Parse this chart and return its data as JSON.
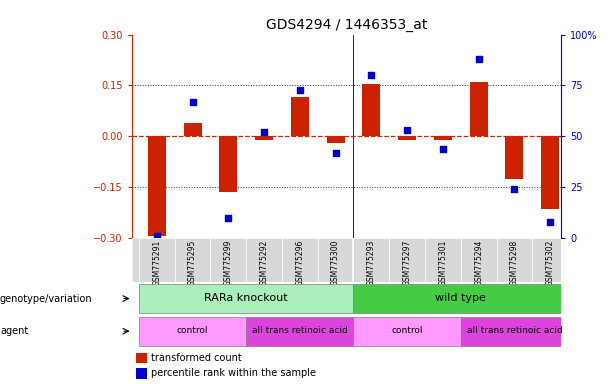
{
  "title": "GDS4294 / 1446353_at",
  "samples": [
    "GSM775291",
    "GSM775295",
    "GSM775299",
    "GSM775292",
    "GSM775296",
    "GSM775300",
    "GSM775293",
    "GSM775297",
    "GSM775301",
    "GSM775294",
    "GSM775298",
    "GSM775302"
  ],
  "bar_values": [
    -0.295,
    0.04,
    -0.165,
    -0.01,
    0.115,
    -0.02,
    0.155,
    -0.01,
    -0.01,
    0.16,
    -0.125,
    -0.215
  ],
  "dot_pct": [
    1,
    67,
    10,
    52,
    73,
    42,
    80,
    53,
    44,
    88,
    24,
    8
  ],
  "ylim_left": [
    -0.3,
    0.3
  ],
  "ylim_right": [
    0,
    100
  ],
  "yticks_left": [
    -0.3,
    -0.15,
    0.0,
    0.15,
    0.3
  ],
  "yticks_right": [
    0,
    25,
    50,
    75,
    100
  ],
  "bar_color": "#CC2200",
  "dot_color": "#0000CC",
  "hline_red": "#CC2200",
  "hline_dot": "#333333",
  "bg": "#FFFFFF",
  "xlab_bg": "#D8D8D8",
  "geno_colors": [
    "#AAEEBB",
    "#44CC44"
  ],
  "geno_labels": [
    "RARa knockout",
    "wild type"
  ],
  "geno_xranges": [
    [
      -0.5,
      5.5
    ],
    [
      5.5,
      11.5
    ]
  ],
  "agent_colors": [
    "#FF99FF",
    "#DD44DD",
    "#FF99FF",
    "#DD44DD"
  ],
  "agent_labels": [
    "control",
    "all trans retinoic acid",
    "control",
    "all trans retinoic acid"
  ],
  "agent_xranges": [
    [
      -0.5,
      2.5
    ],
    [
      2.5,
      5.5
    ],
    [
      5.5,
      8.5
    ],
    [
      8.5,
      11.5
    ]
  ],
  "legend_bar": "transformed count",
  "legend_dot": "percentile rank within the sample",
  "label_genotype": "genotype/variation",
  "label_agent": "agent",
  "title_fontsize": 10,
  "tick_fontsize": 7,
  "sample_fontsize": 5.5,
  "row_label_fontsize": 7,
  "row_content_fontsize": 8,
  "agent_content_fontsize": 6.5,
  "legend_fontsize": 7,
  "bar_width": 0.5,
  "dot_size": 18,
  "n_samples": 12,
  "xlim_lo": -0.7,
  "xlim_hi": 11.3
}
